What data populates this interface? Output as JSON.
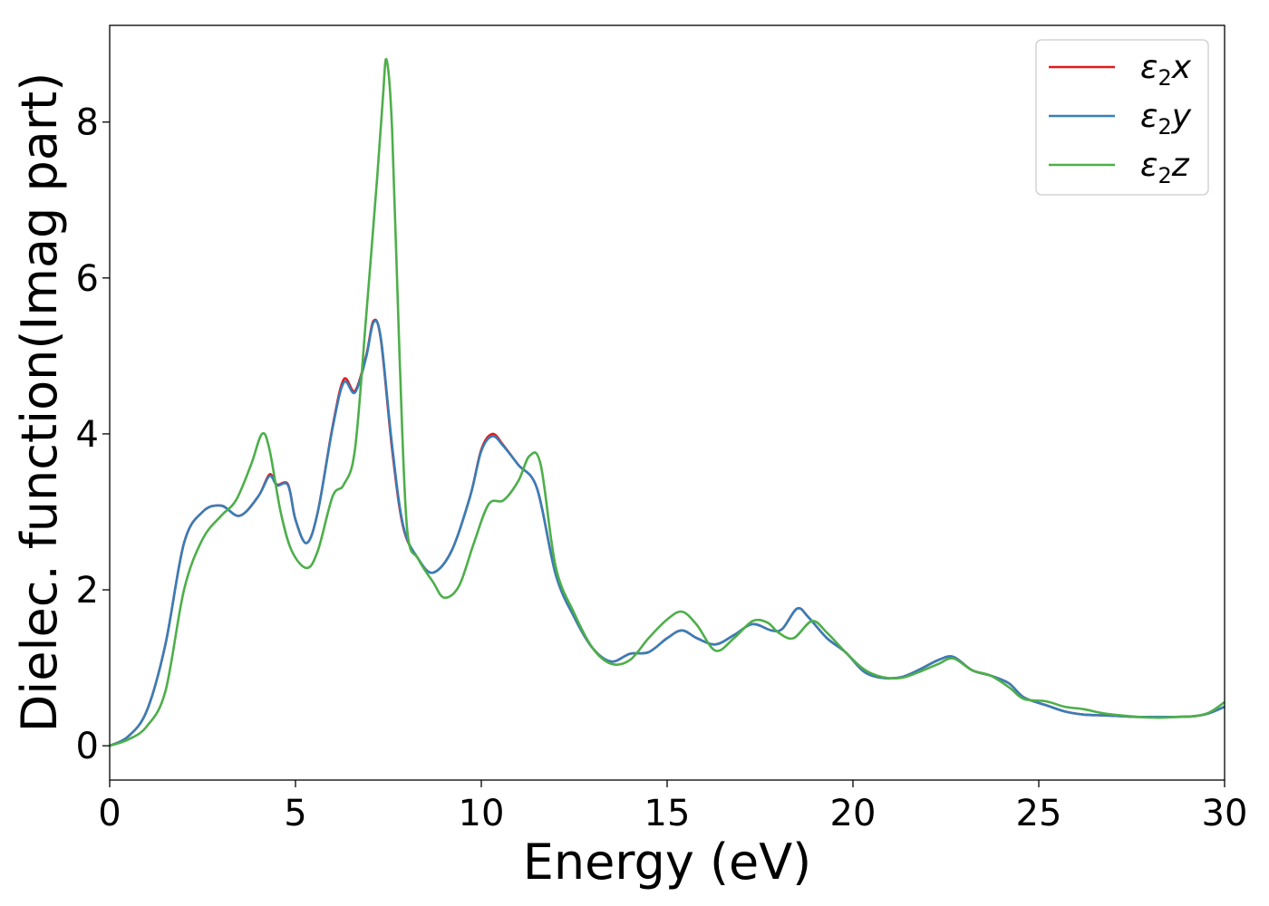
{
  "chart_data": {
    "type": "line",
    "xlabel": "Energy (eV)",
    "ylabel": "Dielec. function(Imag part)",
    "xlim": [
      0,
      30
    ],
    "ylim": [
      -0.44,
      9.24
    ],
    "xticks": [
      0,
      5,
      10,
      15,
      20,
      25,
      30
    ],
    "xtick_labels": [
      "0",
      "5",
      "10",
      "15",
      "20",
      "25",
      "30"
    ],
    "yticks": [
      0,
      2,
      4,
      6,
      8
    ],
    "ytick_labels": [
      "0",
      "2",
      "4",
      "6",
      "8"
    ],
    "grid": false,
    "legend_position": "top-right",
    "series": [
      {
        "name": "ε2x",
        "legend_base": "ε",
        "legend_sub": "2",
        "legend_suffix": "x",
        "color": "#e41a1c",
        "points": [
          [
            0,
            0
          ],
          [
            0.5,
            0.12
          ],
          [
            1,
            0.45
          ],
          [
            1.5,
            1.3
          ],
          [
            2,
            2.6
          ],
          [
            2.5,
            3.0
          ],
          [
            3,
            3.08
          ],
          [
            3.5,
            2.95
          ],
          [
            4,
            3.2
          ],
          [
            4.3,
            3.48
          ],
          [
            4.5,
            3.35
          ],
          [
            4.8,
            3.35
          ],
          [
            5.0,
            2.9
          ],
          [
            5.3,
            2.6
          ],
          [
            5.6,
            3.0
          ],
          [
            6.0,
            4.1
          ],
          [
            6.3,
            4.7
          ],
          [
            6.6,
            4.55
          ],
          [
            6.9,
            5.0
          ],
          [
            7.1,
            5.45
          ],
          [
            7.3,
            5.2
          ],
          [
            7.6,
            3.8
          ],
          [
            7.9,
            2.8
          ],
          [
            8.3,
            2.4
          ],
          [
            8.7,
            2.22
          ],
          [
            9.2,
            2.5
          ],
          [
            9.7,
            3.2
          ],
          [
            10.0,
            3.8
          ],
          [
            10.3,
            4.0
          ],
          [
            10.6,
            3.85
          ],
          [
            11.0,
            3.6
          ],
          [
            11.5,
            3.3
          ],
          [
            12.0,
            2.2
          ],
          [
            12.5,
            1.65
          ],
          [
            13.0,
            1.25
          ],
          [
            13.5,
            1.08
          ],
          [
            14.0,
            1.18
          ],
          [
            14.5,
            1.2
          ],
          [
            15.0,
            1.38
          ],
          [
            15.4,
            1.48
          ],
          [
            15.8,
            1.38
          ],
          [
            16.3,
            1.3
          ],
          [
            16.8,
            1.42
          ],
          [
            17.3,
            1.56
          ],
          [
            17.8,
            1.48
          ],
          [
            18.1,
            1.5
          ],
          [
            18.5,
            1.76
          ],
          [
            18.8,
            1.65
          ],
          [
            19.3,
            1.38
          ],
          [
            19.8,
            1.2
          ],
          [
            20.3,
            0.95
          ],
          [
            20.8,
            0.87
          ],
          [
            21.3,
            0.88
          ],
          [
            21.8,
            0.98
          ],
          [
            22.3,
            1.1
          ],
          [
            22.7,
            1.14
          ],
          [
            23.2,
            0.97
          ],
          [
            23.7,
            0.9
          ],
          [
            24.2,
            0.8
          ],
          [
            24.6,
            0.62
          ],
          [
            25.2,
            0.52
          ],
          [
            25.7,
            0.44
          ],
          [
            26.2,
            0.4
          ],
          [
            26.7,
            0.39
          ],
          [
            27.2,
            0.38
          ],
          [
            27.7,
            0.37
          ],
          [
            28.2,
            0.37
          ],
          [
            28.7,
            0.37
          ],
          [
            29.2,
            0.38
          ],
          [
            29.6,
            0.42
          ],
          [
            30,
            0.5
          ]
        ]
      },
      {
        "name": "ε2y",
        "legend_base": "ε",
        "legend_sub": "2",
        "legend_suffix": "y",
        "color": "#377eb8",
        "points": [
          [
            0,
            0
          ],
          [
            0.5,
            0.12
          ],
          [
            1,
            0.45
          ],
          [
            1.5,
            1.3
          ],
          [
            2,
            2.6
          ],
          [
            2.5,
            3.0
          ],
          [
            3,
            3.08
          ],
          [
            3.5,
            2.95
          ],
          [
            4,
            3.2
          ],
          [
            4.3,
            3.46
          ],
          [
            4.5,
            3.34
          ],
          [
            4.8,
            3.34
          ],
          [
            5.0,
            2.9
          ],
          [
            5.3,
            2.6
          ],
          [
            5.6,
            3.0
          ],
          [
            6.0,
            4.08
          ],
          [
            6.3,
            4.66
          ],
          [
            6.6,
            4.53
          ],
          [
            6.9,
            4.98
          ],
          [
            7.1,
            5.43
          ],
          [
            7.3,
            5.22
          ],
          [
            7.6,
            3.85
          ],
          [
            7.9,
            2.82
          ],
          [
            8.3,
            2.4
          ],
          [
            8.7,
            2.22
          ],
          [
            9.2,
            2.5
          ],
          [
            9.7,
            3.2
          ],
          [
            10.0,
            3.78
          ],
          [
            10.3,
            3.97
          ],
          [
            10.6,
            3.84
          ],
          [
            11.0,
            3.6
          ],
          [
            11.5,
            3.3
          ],
          [
            12.0,
            2.2
          ],
          [
            12.5,
            1.65
          ],
          [
            13.0,
            1.25
          ],
          [
            13.5,
            1.08
          ],
          [
            14.0,
            1.18
          ],
          [
            14.5,
            1.2
          ],
          [
            15.0,
            1.38
          ],
          [
            15.4,
            1.48
          ],
          [
            15.8,
            1.38
          ],
          [
            16.3,
            1.3
          ],
          [
            16.8,
            1.42
          ],
          [
            17.3,
            1.56
          ],
          [
            17.8,
            1.48
          ],
          [
            18.1,
            1.5
          ],
          [
            18.5,
            1.76
          ],
          [
            18.8,
            1.65
          ],
          [
            19.3,
            1.38
          ],
          [
            19.8,
            1.2
          ],
          [
            20.3,
            0.95
          ],
          [
            20.8,
            0.87
          ],
          [
            21.3,
            0.88
          ],
          [
            21.8,
            0.98
          ],
          [
            22.3,
            1.1
          ],
          [
            22.7,
            1.14
          ],
          [
            23.2,
            0.97
          ],
          [
            23.7,
            0.9
          ],
          [
            24.2,
            0.8
          ],
          [
            24.6,
            0.62
          ],
          [
            25.2,
            0.52
          ],
          [
            25.7,
            0.44
          ],
          [
            26.2,
            0.4
          ],
          [
            26.7,
            0.39
          ],
          [
            27.2,
            0.38
          ],
          [
            27.7,
            0.37
          ],
          [
            28.2,
            0.37
          ],
          [
            28.7,
            0.37
          ],
          [
            29.2,
            0.38
          ],
          [
            29.6,
            0.42
          ],
          [
            30,
            0.5
          ]
        ]
      },
      {
        "name": "ε2z",
        "legend_base": "ε",
        "legend_sub": "2",
        "legend_suffix": "z",
        "color": "#4daf4a",
        "points": [
          [
            0,
            0
          ],
          [
            0.5,
            0.08
          ],
          [
            1,
            0.25
          ],
          [
            1.5,
            0.7
          ],
          [
            2,
            2.0
          ],
          [
            2.5,
            2.65
          ],
          [
            3,
            2.95
          ],
          [
            3.4,
            3.15
          ],
          [
            3.8,
            3.6
          ],
          [
            4.1,
            4.0
          ],
          [
            4.3,
            3.8
          ],
          [
            4.6,
            3.0
          ],
          [
            4.9,
            2.5
          ],
          [
            5.3,
            2.28
          ],
          [
            5.6,
            2.5
          ],
          [
            6.0,
            3.2
          ],
          [
            6.3,
            3.35
          ],
          [
            6.6,
            3.8
          ],
          [
            6.9,
            5.5
          ],
          [
            7.2,
            7.3
          ],
          [
            7.35,
            8.3
          ],
          [
            7.45,
            8.8
          ],
          [
            7.6,
            7.9
          ],
          [
            7.8,
            5.0
          ],
          [
            8.0,
            2.8
          ],
          [
            8.3,
            2.4
          ],
          [
            8.7,
            2.1
          ],
          [
            9.0,
            1.9
          ],
          [
            9.4,
            2.05
          ],
          [
            9.8,
            2.6
          ],
          [
            10.2,
            3.1
          ],
          [
            10.6,
            3.15
          ],
          [
            11.0,
            3.4
          ],
          [
            11.3,
            3.72
          ],
          [
            11.6,
            3.6
          ],
          [
            12.0,
            2.3
          ],
          [
            12.5,
            1.7
          ],
          [
            13.0,
            1.25
          ],
          [
            13.5,
            1.05
          ],
          [
            14.0,
            1.1
          ],
          [
            14.5,
            1.38
          ],
          [
            15.0,
            1.62
          ],
          [
            15.4,
            1.72
          ],
          [
            15.8,
            1.55
          ],
          [
            16.3,
            1.22
          ],
          [
            16.8,
            1.38
          ],
          [
            17.3,
            1.6
          ],
          [
            17.7,
            1.58
          ],
          [
            18.0,
            1.45
          ],
          [
            18.4,
            1.38
          ],
          [
            18.9,
            1.6
          ],
          [
            19.3,
            1.45
          ],
          [
            19.8,
            1.2
          ],
          [
            20.3,
            0.98
          ],
          [
            20.8,
            0.88
          ],
          [
            21.3,
            0.87
          ],
          [
            21.8,
            0.95
          ],
          [
            22.3,
            1.05
          ],
          [
            22.7,
            1.12
          ],
          [
            23.2,
            0.97
          ],
          [
            23.7,
            0.9
          ],
          [
            24.2,
            0.75
          ],
          [
            24.6,
            0.6
          ],
          [
            25.2,
            0.57
          ],
          [
            25.7,
            0.5
          ],
          [
            26.2,
            0.47
          ],
          [
            26.7,
            0.42
          ],
          [
            27.2,
            0.39
          ],
          [
            27.7,
            0.37
          ],
          [
            28.2,
            0.36
          ],
          [
            28.7,
            0.37
          ],
          [
            29.2,
            0.38
          ],
          [
            29.6,
            0.43
          ],
          [
            30,
            0.56
          ]
        ]
      }
    ]
  }
}
